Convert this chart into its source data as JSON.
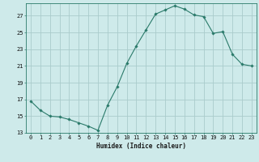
{
  "x": [
    0,
    1,
    2,
    3,
    4,
    5,
    6,
    7,
    8,
    9,
    10,
    11,
    12,
    13,
    14,
    15,
    16,
    17,
    18,
    19,
    20,
    21,
    22,
    23
  ],
  "y": [
    16.8,
    15.7,
    15.0,
    14.9,
    14.6,
    14.2,
    13.8,
    13.3,
    16.3,
    18.5,
    21.3,
    23.4,
    25.3,
    27.2,
    27.7,
    28.2,
    27.8,
    27.1,
    26.9,
    24.9,
    25.1,
    22.4,
    21.2,
    21.0
  ],
  "xlabel": "Humidex (Indice chaleur)",
  "ylabel": "",
  "bg_color": "#ceeaea",
  "grid_color": "#aacccc",
  "line_color": "#2a7a6a",
  "marker_color": "#2a7a6a",
  "ylim": [
    13,
    28.5
  ],
  "xlim": [
    -0.5,
    23.5
  ],
  "yticks": [
    13,
    15,
    17,
    19,
    21,
    23,
    25,
    27
  ],
  "xticks": [
    0,
    1,
    2,
    3,
    4,
    5,
    6,
    7,
    8,
    9,
    10,
    11,
    12,
    13,
    14,
    15,
    16,
    17,
    18,
    19,
    20,
    21,
    22,
    23
  ]
}
